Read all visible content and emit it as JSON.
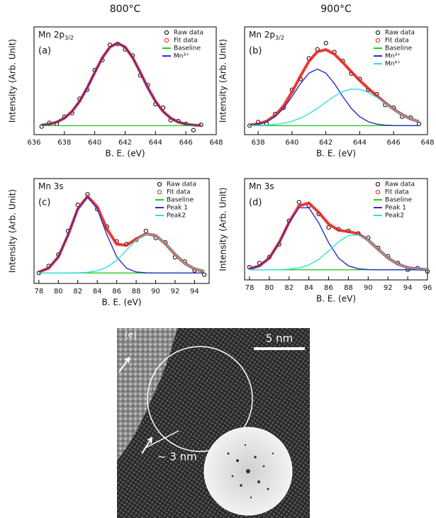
{
  "chart_data": [
    {
      "type": "line",
      "title": "800°C",
      "panel_label": "(a)",
      "annotation": {
        "text": "Mn 2p",
        "sub": "3/2"
      },
      "xlabel": "B. E. (eV)",
      "ylabel": "Intensity (Arb. Unit)",
      "xlim": [
        636,
        648
      ],
      "xticks": [
        636,
        638,
        640,
        642,
        644,
        646,
        648
      ],
      "ylim": [
        0,
        1.2
      ],
      "x": [
        636.5,
        637,
        637.5,
        638,
        638.5,
        639,
        639.5,
        640,
        640.5,
        641,
        641.5,
        642,
        642.5,
        643,
        643.5,
        644,
        644.5,
        645,
        645.5,
        646,
        646.5,
        647
      ],
      "series": [
        {
          "name": "Raw data",
          "color": "#000000",
          "style": "markers",
          "values": [
            0.09,
            0.13,
            0.12,
            0.2,
            0.24,
            0.4,
            0.5,
            0.72,
            0.83,
            1.0,
            1.01,
            0.95,
            0.88,
            0.66,
            0.55,
            0.34,
            0.3,
            0.16,
            0.15,
            0.12,
            0.05,
            0.11
          ]
        },
        {
          "name": "Fit data",
          "color": "#e8231f",
          "style": "fit",
          "values": [
            0.107,
            0.117,
            0.14,
            0.184,
            0.258,
            0.371,
            0.521,
            0.693,
            0.857,
            0.976,
            1.02,
            0.976,
            0.857,
            0.693,
            0.521,
            0.371,
            0.258,
            0.184,
            0.14,
            0.117,
            0.107,
            0.102
          ]
        },
        {
          "name": "Baseline",
          "color": "#22cc22",
          "style": "line",
          "values": [
            0.1,
            0.1,
            0.1,
            0.1,
            0.1,
            0.1,
            0.1,
            0.1,
            0.1,
            0.1,
            0.1,
            0.1,
            0.1,
            0.1,
            0.1,
            0.1,
            0.1,
            0.1,
            0.1,
            0.1,
            0.1,
            0.1
          ]
        },
        {
          "name": "Mn³⁺",
          "color": "#2b2bc8",
          "style": "line",
          "values": [
            0.107,
            0.117,
            0.14,
            0.184,
            0.258,
            0.371,
            0.521,
            0.693,
            0.857,
            0.976,
            1.02,
            0.976,
            0.857,
            0.693,
            0.521,
            0.371,
            0.258,
            0.184,
            0.14,
            0.117,
            0.107,
            0.102
          ]
        }
      ]
    },
    {
      "type": "line",
      "title": "900°C",
      "panel_label": "(b)",
      "annotation": {
        "text": "Mn 2p",
        "sub": "3/2"
      },
      "xlabel": "B. E. (eV)",
      "ylabel": "Intensity (Arb. Unit)",
      "xlim": [
        637.2,
        648
      ],
      "xticks": [
        638,
        640,
        642,
        644,
        646,
        648
      ],
      "ylim": [
        0,
        1.2
      ],
      "x": [
        637.5,
        638,
        638.5,
        639,
        639.5,
        640,
        640.5,
        641,
        641.5,
        642,
        642.5,
        643,
        643.5,
        644,
        644.5,
        645,
        645.5,
        646,
        646.5,
        647,
        647.5
      ],
      "series": [
        {
          "name": "Raw data",
          "color": "#000000",
          "style": "markers",
          "values": [
            0.1,
            0.14,
            0.12,
            0.23,
            0.3,
            0.5,
            0.62,
            0.85,
            0.95,
            1.02,
            0.92,
            0.82,
            0.68,
            0.62,
            0.5,
            0.45,
            0.33,
            0.3,
            0.2,
            0.19,
            0.12
          ]
        },
        {
          "name": "Fit data",
          "color": "#e8231f",
          "style": "fit",
          "values": [
            0.107,
            0.12,
            0.15,
            0.213,
            0.32,
            0.474,
            0.653,
            0.818,
            0.924,
            0.947,
            0.897,
            0.804,
            0.701,
            0.603,
            0.515,
            0.433,
            0.355,
            0.283,
            0.223,
            0.176,
            0.144
          ]
        },
        {
          "name": "Baseline",
          "color": "#22cc22",
          "style": "line",
          "values": [
            0.1,
            0.1,
            0.1,
            0.1,
            0.1,
            0.1,
            0.1,
            0.1,
            0.1,
            0.1,
            0.1,
            0.1,
            0.1,
            0.1,
            0.1,
            0.1,
            0.1,
            0.1,
            0.1,
            0.1,
            0.1
          ]
        },
        {
          "name": "Mn³⁺",
          "color": "#2b2bc8",
          "style": "line",
          "values": [
            0.106,
            0.117,
            0.144,
            0.199,
            0.293,
            0.424,
            0.569,
            0.685,
            0.73,
            0.685,
            0.569,
            0.424,
            0.293,
            0.199,
            0.144,
            0.117,
            0.106,
            0.102,
            0.101,
            0.1,
            0.1
          ]
        },
        {
          "name": "Mn⁴⁺",
          "color": "#2ee0e6",
          "style": "line",
          "values": [
            0.101,
            0.103,
            0.106,
            0.114,
            0.127,
            0.15,
            0.184,
            0.233,
            0.294,
            0.362,
            0.428,
            0.48,
            0.508,
            0.504,
            0.471,
            0.416,
            0.349,
            0.281,
            0.222,
            0.176,
            0.144
          ]
        }
      ]
    },
    {
      "type": "line",
      "panel_label": "(c)",
      "annotation": {
        "text": "Mn 3s"
      },
      "xlabel": "B. E. (eV)",
      "ylabel": "Intensity (Arb. Unit)",
      "xlim": [
        77.5,
        95.5
      ],
      "xticks": [
        78,
        80,
        82,
        84,
        86,
        88,
        90,
        92,
        94
      ],
      "ylim": [
        0,
        1.2
      ],
      "x": [
        78,
        79,
        80,
        81,
        82,
        83,
        84,
        85,
        86,
        87,
        88,
        89,
        90,
        91,
        92,
        93,
        94,
        95
      ],
      "series": [
        {
          "name": "Raw data",
          "color": "#000000",
          "style": "markers",
          "values": [
            0.12,
            0.2,
            0.33,
            0.6,
            0.9,
            1.02,
            0.85,
            0.65,
            0.48,
            0.45,
            0.5,
            0.6,
            0.52,
            0.47,
            0.3,
            0.25,
            0.15,
            0.1
          ]
        },
        {
          "name": "Fit data",
          "color": "#e8231f",
          "style": "fit",
          "values": [
            0.131,
            0.175,
            0.304,
            0.555,
            0.854,
            0.997,
            0.877,
            0.622,
            0.45,
            0.436,
            0.509,
            0.568,
            0.548,
            0.454,
            0.332,
            0.229,
            0.166,
            0.136
          ]
        },
        {
          "name": "Baseline",
          "color": "#22cc22",
          "style": "line",
          "values": [
            0.12,
            0.12,
            0.12,
            0.12,
            0.12,
            0.12,
            0.12,
            0.12,
            0.12,
            0.12,
            0.12,
            0.12,
            0.12,
            0.12,
            0.12,
            0.12,
            0.12,
            0.12
          ]
        },
        {
          "name": "Peak 1",
          "color": "#2b2bc8",
          "style": "line",
          "values": [
            0.131,
            0.175,
            0.304,
            0.555,
            0.852,
            0.99,
            0.852,
            0.555,
            0.304,
            0.175,
            0.131,
            0.122,
            0.12,
            0.12,
            0.12,
            0.12,
            0.12,
            0.12
          ]
        },
        {
          "name": "Peak2",
          "color": "#2ee0e6",
          "style": "line",
          "values": [
            0.12,
            0.12,
            0.12,
            0.12,
            0.122,
            0.127,
            0.145,
            0.187,
            0.266,
            0.381,
            0.498,
            0.566,
            0.548,
            0.454,
            0.332,
            0.229,
            0.166,
            0.136
          ]
        }
      ]
    },
    {
      "type": "line",
      "panel_label": "(d)",
      "annotation": {
        "text": "Mn 3s"
      },
      "xlabel": "B. E. (eV)",
      "ylabel": "Intensity (Arb. Unit)",
      "xlim": [
        77.5,
        96
      ],
      "xticks": [
        78,
        80,
        82,
        84,
        86,
        88,
        90,
        92,
        94,
        96
      ],
      "ylim": [
        0,
        1.2
      ],
      "x": [
        78,
        79,
        80,
        81,
        82,
        83,
        84,
        85,
        86,
        87,
        88,
        89,
        90,
        91,
        92,
        93,
        94,
        95,
        96
      ],
      "series": [
        {
          "name": "Raw data",
          "color": "#000000",
          "style": "markers",
          "values": [
            0.15,
            0.2,
            0.27,
            0.42,
            0.7,
            0.92,
            0.88,
            0.78,
            0.62,
            0.6,
            0.58,
            0.55,
            0.5,
            0.38,
            0.28,
            0.2,
            0.12,
            0.14,
            0.1
          ]
        },
        {
          "name": "Fit data",
          "color": "#e8231f",
          "style": "fit",
          "values": [
            0.132,
            0.166,
            0.259,
            0.442,
            0.683,
            0.876,
            0.911,
            0.799,
            0.662,
            0.589,
            0.572,
            0.546,
            0.471,
            0.364,
            0.261,
            0.187,
            0.146,
            0.129,
            0.122
          ]
        },
        {
          "name": "Baseline",
          "color": "#22cc22",
          "style": "line",
          "values": [
            0.12,
            0.12,
            0.12,
            0.12,
            0.12,
            0.12,
            0.12,
            0.12,
            0.12,
            0.12,
            0.12,
            0.12,
            0.12,
            0.12,
            0.12,
            0.12,
            0.12,
            0.12,
            0.12
          ]
        },
        {
          "name": "Peak 1",
          "color": "#2b2bc8",
          "style": "line",
          "values": [
            0.132,
            0.166,
            0.259,
            0.44,
            0.676,
            0.854,
            0.854,
            0.676,
            0.44,
            0.259,
            0.166,
            0.132,
            0.122,
            0.12,
            0.12,
            0.12,
            0.12,
            0.12,
            0.12
          ]
        },
        {
          "name": "Peak2",
          "color": "#2ee0e6",
          "style": "line",
          "values": [
            0.12,
            0.12,
            0.12,
            0.122,
            0.127,
            0.142,
            0.177,
            0.243,
            0.342,
            0.45,
            0.526,
            0.534,
            0.469,
            0.364,
            0.261,
            0.187,
            0.146,
            0.129,
            0.122
          ]
        }
      ]
    }
  ],
  "image": {
    "label": "(e)",
    "scale_bar": "5 nm",
    "annotation": "~ 3 nm"
  }
}
